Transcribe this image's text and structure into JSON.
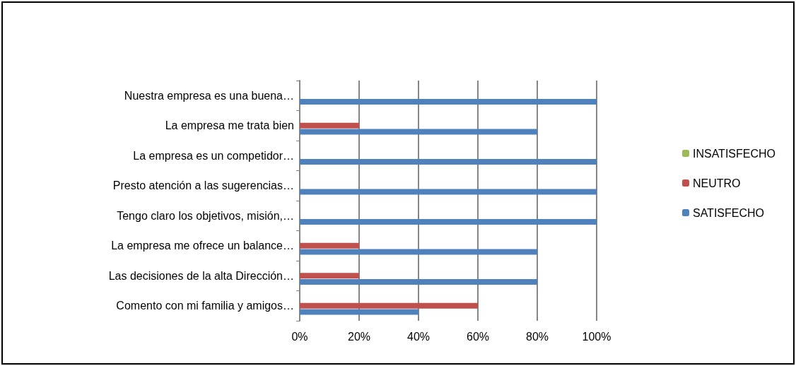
{
  "chart_data": {
    "type": "bar",
    "orientation": "horizontal",
    "categories": [
      "Nuestra empresa es una buena…",
      "La empresa me trata bien",
      "La empresa es un competidor…",
      "Presto atención a las sugerencias…",
      "Tengo claro los objetivos, misión,…",
      "La empresa me ofrece un balance…",
      "Las decisiones de la alta Dirección…",
      "Comento con mi familia y amigos…"
    ],
    "series": [
      {
        "name": "INSATISFECHO",
        "color": "#9bbb59",
        "values": [
          0,
          0,
          0,
          0,
          0,
          0,
          0,
          0
        ]
      },
      {
        "name": "NEUTRO",
        "color": "#c0504d",
        "values": [
          0,
          20,
          0,
          0,
          0,
          20,
          20,
          60
        ]
      },
      {
        "name": "SATISFECHO",
        "color": "#4f81bd",
        "values": [
          100,
          80,
          100,
          100,
          100,
          80,
          80,
          40
        ]
      }
    ],
    "xlim": [
      0,
      100
    ],
    "xticks": [
      {
        "value": 0,
        "label": "0%"
      },
      {
        "value": 20,
        "label": "20%"
      },
      {
        "value": 40,
        "label": "40%"
      },
      {
        "value": 60,
        "label": "60%"
      },
      {
        "value": 80,
        "label": "80%"
      },
      {
        "value": 100,
        "label": "100%"
      }
    ],
    "grid": "x",
    "legend": "right"
  }
}
